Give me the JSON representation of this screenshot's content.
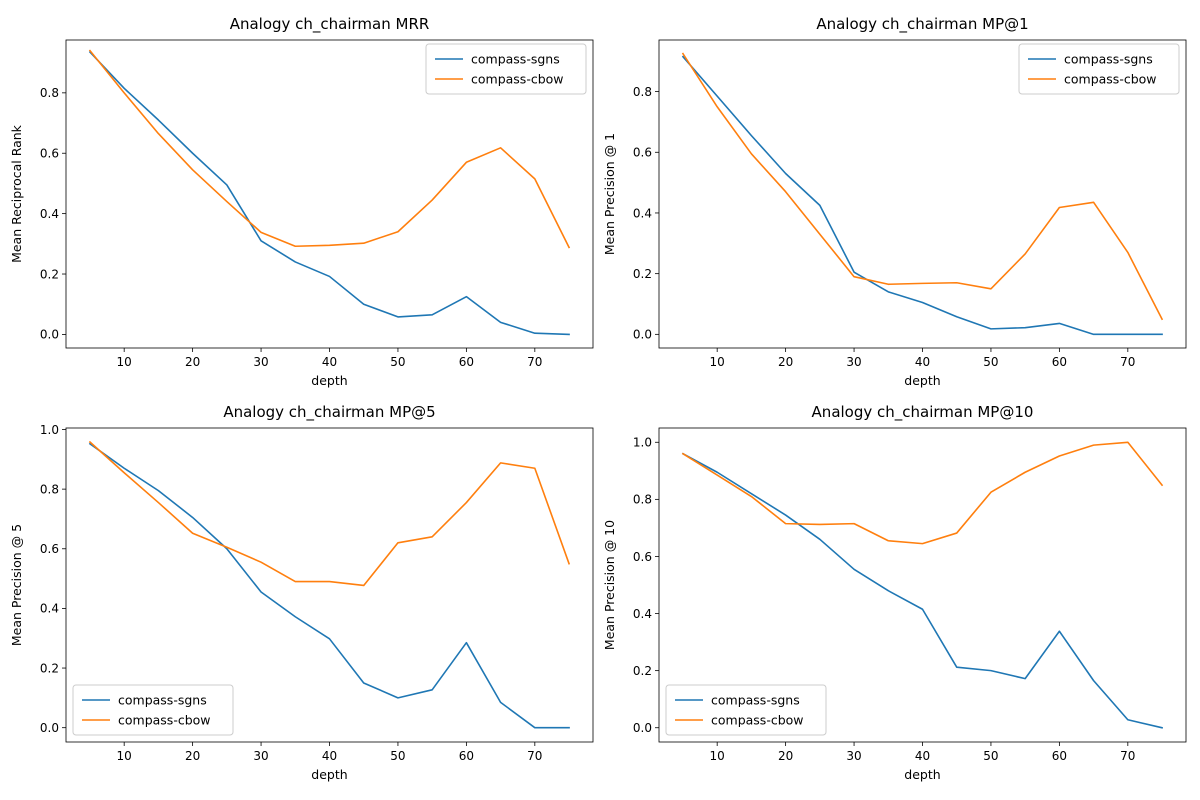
{
  "colors": {
    "compass-sgns": "#1f77b4",
    "compass-cbow": "#ff7f0e"
  },
  "chart_data": [
    {
      "type": "line",
      "title": "Analogy ch_chairman MRR",
      "xlabel": "depth",
      "ylabel": "Mean Reciprocal Rank",
      "xlim": [
        1.5,
        78.5
      ],
      "ylim": [
        -0.045,
        0.975
      ],
      "xticks": [
        10,
        20,
        30,
        40,
        50,
        60,
        70
      ],
      "yticks": [
        0.0,
        0.2,
        0.4,
        0.6,
        0.8
      ],
      "ytick_labels": [
        "0.0",
        "0.2",
        "0.4",
        "0.6",
        "0.8"
      ],
      "legend": "upper right",
      "x": [
        5,
        10,
        15,
        20,
        25,
        30,
        35,
        40,
        45,
        50,
        55,
        60,
        65,
        70,
        75
      ],
      "series": [
        {
          "name": "compass-sgns",
          "values": [
            0.935,
            0.815,
            0.71,
            0.6,
            0.495,
            0.31,
            0.24,
            0.192,
            0.1,
            0.058,
            0.065,
            0.125,
            0.04,
            0.004,
            0.0
          ]
        },
        {
          "name": "compass-cbow",
          "values": [
            0.94,
            0.8,
            0.665,
            0.545,
            0.44,
            0.338,
            0.292,
            0.295,
            0.302,
            0.34,
            0.445,
            0.57,
            0.618,
            0.515,
            0.288
          ]
        }
      ]
    },
    {
      "type": "line",
      "title": "Analogy ch_chairman MP@1",
      "xlabel": "depth",
      "ylabel": "Mean Precision @ 1",
      "xlim": [
        1.5,
        78.5
      ],
      "ylim": [
        -0.045,
        0.97
      ],
      "xticks": [
        10,
        20,
        30,
        40,
        50,
        60,
        70
      ],
      "yticks": [
        0.0,
        0.2,
        0.4,
        0.6,
        0.8
      ],
      "ytick_labels": [
        "0.0",
        "0.2",
        "0.4",
        "0.6",
        "0.8"
      ],
      "legend": "upper right",
      "x": [
        5,
        10,
        15,
        20,
        25,
        30,
        35,
        40,
        45,
        50,
        55,
        60,
        65,
        70,
        75
      ],
      "series": [
        {
          "name": "compass-sgns",
          "values": [
            0.915,
            0.785,
            0.655,
            0.53,
            0.425,
            0.205,
            0.14,
            0.105,
            0.058,
            0.018,
            0.022,
            0.036,
            0.0,
            0.0,
            0.0
          ]
        },
        {
          "name": "compass-cbow",
          "values": [
            0.925,
            0.75,
            0.595,
            0.47,
            0.33,
            0.19,
            0.165,
            0.168,
            0.17,
            0.15,
            0.265,
            0.418,
            0.435,
            0.27,
            0.05
          ]
        }
      ]
    },
    {
      "type": "line",
      "title": "Analogy ch_chairman MP@5",
      "xlabel": "depth",
      "ylabel": "Mean Precision @ 5",
      "xlim": [
        1.5,
        78.5
      ],
      "ylim": [
        -0.048,
        1.005
      ],
      "xticks": [
        10,
        20,
        30,
        40,
        50,
        60,
        70
      ],
      "yticks": [
        0.0,
        0.2,
        0.4,
        0.6,
        0.8,
        1.0
      ],
      "ytick_labels": [
        "0.0",
        "0.2",
        "0.4",
        "0.6",
        "0.8",
        "1.0"
      ],
      "legend": "lower left",
      "x": [
        5,
        10,
        15,
        20,
        25,
        30,
        35,
        40,
        45,
        50,
        55,
        60,
        65,
        70,
        75
      ],
      "series": [
        {
          "name": "compass-sgns",
          "values": [
            0.952,
            0.87,
            0.795,
            0.705,
            0.6,
            0.455,
            0.372,
            0.298,
            0.15,
            0.1,
            0.127,
            0.285,
            0.085,
            0.0,
            0.0
          ]
        },
        {
          "name": "compass-cbow",
          "values": [
            0.958,
            0.855,
            0.755,
            0.652,
            0.605,
            0.555,
            0.49,
            0.49,
            0.477,
            0.62,
            0.64,
            0.755,
            0.888,
            0.87,
            0.55
          ]
        }
      ]
    },
    {
      "type": "line",
      "title": "Analogy ch_chairman MP@10",
      "xlabel": "depth",
      "ylabel": "Mean Precision @ 10",
      "xlim": [
        1.5,
        78.5
      ],
      "ylim": [
        -0.05,
        1.05
      ],
      "xticks": [
        10,
        20,
        30,
        40,
        50,
        60,
        70
      ],
      "yticks": [
        0.0,
        0.2,
        0.4,
        0.6,
        0.8,
        1.0
      ],
      "ytick_labels": [
        "0.0",
        "0.2",
        "0.4",
        "0.6",
        "0.8",
        "1.0"
      ],
      "legend": "lower left",
      "x": [
        5,
        10,
        15,
        20,
        25,
        30,
        35,
        40,
        45,
        50,
        55,
        60,
        65,
        70,
        75
      ],
      "series": [
        {
          "name": "compass-sgns",
          "values": [
            0.96,
            0.895,
            0.82,
            0.745,
            0.66,
            0.555,
            0.48,
            0.415,
            0.212,
            0.2,
            0.172,
            0.338,
            0.165,
            0.028,
            0.0
          ]
        },
        {
          "name": "compass-cbow",
          "values": [
            0.96,
            0.885,
            0.81,
            0.715,
            0.712,
            0.715,
            0.655,
            0.645,
            0.682,
            0.825,
            0.895,
            0.952,
            0.99,
            1.0,
            0.85
          ]
        }
      ]
    }
  ]
}
